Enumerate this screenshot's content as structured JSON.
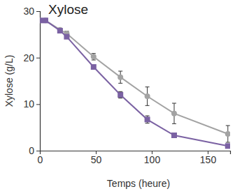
{
  "chart_data": {
    "type": "line",
    "title": "Xylose",
    "x_label": "Temps (heure)",
    "y_label": "Xylose (g/L)",
    "x": [
      0,
      5,
      18,
      24,
      48,
      72,
      96,
      120,
      168
    ],
    "series": [
      {
        "color": "#a3a3a3",
        "marker": "circle",
        "values": [
          28,
          28,
          26,
          25.2,
          20.2,
          15.8,
          11.7,
          8,
          3.6
        ],
        "errors": [
          0,
          0,
          0.3,
          0.5,
          0.7,
          1.3,
          2,
          2.2,
          1.8
        ]
      },
      {
        "color": "#7b62a3",
        "marker": "square",
        "values": [
          28,
          28,
          25.8,
          24.5,
          18,
          12,
          6.7,
          3.3,
          1
        ],
        "errors": [
          0,
          0,
          0.3,
          0.4,
          0.3,
          0.7,
          0.8,
          0.3,
          0.4
        ]
      }
    ],
    "xlim": [
      0,
      170
    ],
    "xticks": [
      0,
      50,
      100,
      150
    ],
    "ylim": [
      0,
      30
    ],
    "yticks": [
      0,
      10,
      20,
      30
    ]
  }
}
